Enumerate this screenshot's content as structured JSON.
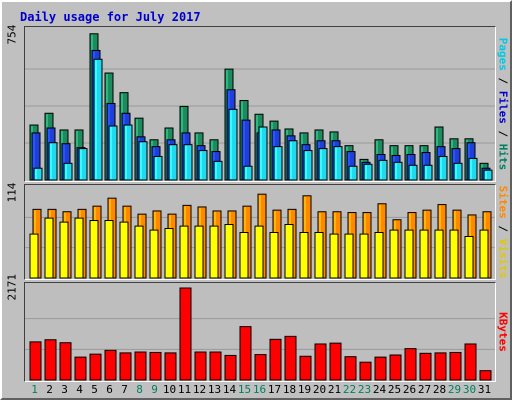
{
  "title": "Daily usage for July 2017",
  "colors": {
    "hits": "#1e8a5e",
    "files": "#1e3fd8",
    "pages": "#22d8ee",
    "visits": "#ffff00",
    "sites": "#ff8800",
    "kbytes": "#ff0000",
    "weekday_label": "#000000",
    "weekend_label": "#008060",
    "panel_bg": "#bebebe",
    "gridline": "#9a9a9a"
  },
  "legends": {
    "hits_panel": [
      {
        "text": "Pages",
        "color": "#00c8e8"
      },
      {
        "text": " / ",
        "color": "#000000"
      },
      {
        "text": "Files",
        "color": "#0000cc"
      },
      {
        "text": " / ",
        "color": "#000000"
      },
      {
        "text": "Hits",
        "color": "#008060"
      }
    ],
    "sites_panel": [
      {
        "text": "Sites",
        "color": "#ff8800"
      },
      {
        "text": " / ",
        "color": "#000000"
      },
      {
        "text": "Visits",
        "color": "#e0c800"
      }
    ],
    "kbytes_panel": [
      {
        "text": "KBytes",
        "color": "#ff0000"
      }
    ]
  },
  "chart_data": [
    {
      "type": "bar",
      "panel": "hits",
      "ymax_label": "754",
      "ylim": [
        0,
        754
      ],
      "grid": true,
      "categories": [
        "1",
        "2",
        "3",
        "4",
        "5",
        "6",
        "7",
        "8",
        "9",
        "10",
        "11",
        "12",
        "13",
        "14",
        "15",
        "16",
        "17",
        "18",
        "19",
        "20",
        "21",
        "22",
        "23",
        "24",
        "25",
        "26",
        "27",
        "28",
        "29",
        "30",
        "31"
      ],
      "weekend_days": [
        "1",
        "8",
        "9",
        "15",
        "16",
        "22",
        "23",
        "29",
        "30"
      ],
      "series": [
        {
          "name": "Hits",
          "values": [
            280,
            340,
            255,
            255,
            745,
            545,
            445,
            315,
            205,
            265,
            375,
            240,
            205,
            565,
            405,
            335,
            300,
            260,
            240,
            255,
            245,
            175,
            105,
            205,
            175,
            175,
            175,
            270,
            210,
            210,
            85
          ]
        },
        {
          "name": "Files",
          "values": [
            240,
            265,
            185,
            165,
            660,
            390,
            340,
            220,
            170,
            205,
            240,
            175,
            145,
            460,
            305,
            240,
            255,
            225,
            180,
            200,
            200,
            145,
            90,
            130,
            125,
            130,
            140,
            170,
            160,
            190,
            60
          ]
        },
        {
          "name": "Pages",
          "values": [
            60,
            190,
            85,
            160,
            615,
            275,
            280,
            195,
            120,
            180,
            180,
            150,
            95,
            360,
            70,
            270,
            170,
            200,
            150,
            160,
            170,
            70,
            80,
            100,
            90,
            75,
            75,
            120,
            85,
            110,
            50
          ]
        }
      ]
    },
    {
      "type": "bar",
      "panel": "sites",
      "ymax_label": "114",
      "ylim": [
        0,
        114
      ],
      "grid": true,
      "categories": [
        "1",
        "2",
        "3",
        "4",
        "5",
        "6",
        "7",
        "8",
        "9",
        "10",
        "11",
        "12",
        "13",
        "14",
        "15",
        "16",
        "17",
        "18",
        "19",
        "20",
        "21",
        "22",
        "23",
        "24",
        "25",
        "26",
        "27",
        "28",
        "29",
        "30",
        "31"
      ],
      "series": [
        {
          "name": "Visits",
          "values": [
            55,
            75,
            70,
            75,
            72,
            72,
            70,
            65,
            60,
            62,
            65,
            65,
            65,
            67,
            57,
            65,
            57,
            67,
            57,
            57,
            55,
            55,
            55,
            57,
            60,
            60,
            60,
            60,
            60,
            52,
            60
          ]
        },
        {
          "name": "Sites",
          "values": [
            86,
            86,
            83,
            86,
            90,
            100,
            90,
            80,
            84,
            80,
            91,
            89,
            84,
            84,
            90,
            105,
            85,
            86,
            103,
            83,
            83,
            82,
            82,
            93,
            73,
            82,
            85,
            92,
            85,
            79,
            83
          ]
        }
      ]
    },
    {
      "type": "bar",
      "panel": "kbytes",
      "ymax_label": "2171",
      "ylim": [
        0,
        2171
      ],
      "grid": true,
      "categories": [
        "1",
        "2",
        "3",
        "4",
        "5",
        "6",
        "7",
        "8",
        "9",
        "10",
        "11",
        "12",
        "13",
        "14",
        "15",
        "16",
        "17",
        "18",
        "19",
        "20",
        "21",
        "22",
        "23",
        "24",
        "25",
        "26",
        "27",
        "28",
        "29",
        "30",
        "31"
      ],
      "series": [
        {
          "name": "KBytes",
          "values": [
            900,
            950,
            880,
            540,
            610,
            700,
            640,
            660,
            650,
            640,
            2171,
            660,
            660,
            580,
            1260,
            600,
            960,
            1030,
            560,
            850,
            870,
            550,
            420,
            540,
            590,
            740,
            630,
            640,
            650,
            850,
            220
          ]
        }
      ]
    }
  ]
}
